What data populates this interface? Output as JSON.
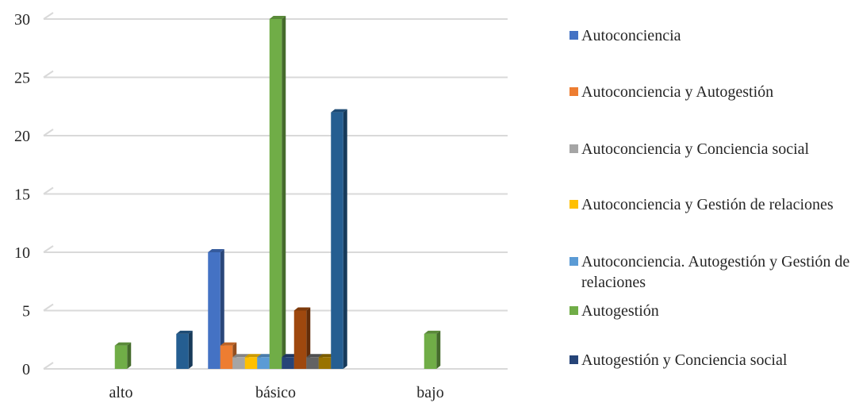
{
  "chart_data": {
    "type": "bar",
    "categories": [
      "alto",
      "básico",
      "bajo"
    ],
    "ylim": [
      0,
      30
    ],
    "yticks": [
      0,
      5,
      10,
      15,
      20,
      25,
      30
    ],
    "grid": true,
    "legend_position": "right",
    "series": [
      {
        "name": "Autoconciencia",
        "color": "#4472C4",
        "values": [
          0,
          10,
          0
        ]
      },
      {
        "name": "Autoconciencia y Autogestión",
        "color": "#ED7D31",
        "values": [
          0,
          2,
          0
        ]
      },
      {
        "name": "Autoconciencia y Conciencia social",
        "color": "#A5A5A5",
        "values": [
          0,
          1,
          0
        ]
      },
      {
        "name": "Autoconciencia y Gestión de relaciones",
        "color": "#FFC000",
        "values": [
          0,
          1,
          0
        ]
      },
      {
        "name": "Autoconciencia. Autogestión y Gestión de relaciones",
        "color": "#5B9BD5",
        "values": [
          0,
          1,
          0
        ]
      },
      {
        "name": "Autogestión",
        "color": "#70AD47",
        "values": [
          2,
          30,
          3
        ]
      },
      {
        "name": "Autogestión y Conciencia social",
        "color": "#264478",
        "values": [
          0,
          1,
          0
        ]
      },
      {
        "name": "",
        "color": "#9E480E",
        "values": [
          0,
          5,
          0
        ]
      },
      {
        "name": "",
        "color": "#636363",
        "values": [
          0,
          1,
          0
        ]
      },
      {
        "name": "",
        "color": "#997300",
        "values": [
          0,
          1,
          0
        ]
      },
      {
        "name": "",
        "color": "#255E91",
        "values": [
          3,
          22,
          0
        ]
      }
    ]
  }
}
